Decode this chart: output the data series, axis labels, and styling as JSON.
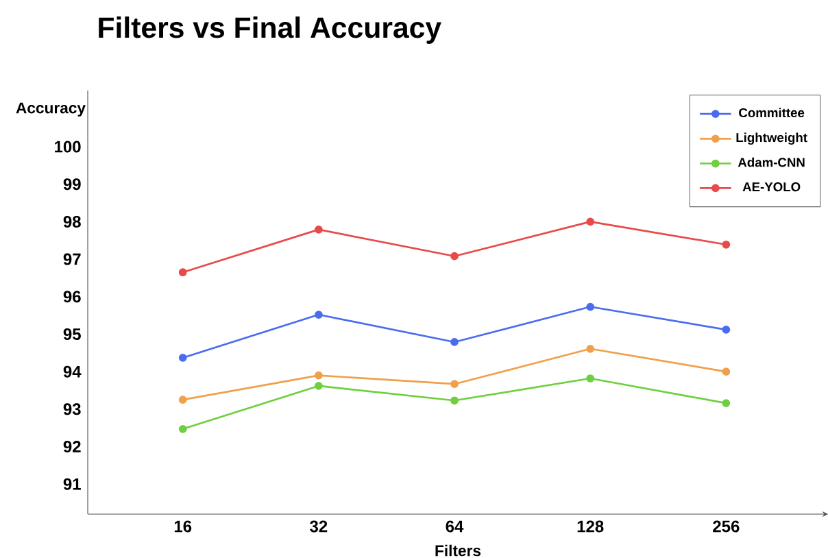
{
  "chart_data": {
    "type": "line",
    "title": "Filters vs Final Accuracy",
    "xlabel": "Filters",
    "ylabel": "Accuracy",
    "categories": [
      "16",
      "32",
      "64",
      "128",
      "256"
    ],
    "series": [
      {
        "name": "Committee",
        "color": "#4a6cf0",
        "values": [
          94.37,
          95.52,
          94.79,
          95.73,
          95.12
        ]
      },
      {
        "name": "Lightweight",
        "color": "#f0a04b",
        "values": [
          93.25,
          93.9,
          93.67,
          94.61,
          94.0
        ]
      },
      {
        "name": "Adam-CNN",
        "color": "#6fcf3f",
        "values": [
          92.47,
          93.62,
          93.23,
          93.82,
          93.16
        ]
      },
      {
        "name": "AE-YOLO",
        "color": "#e84a4a",
        "values": [
          96.65,
          97.79,
          97.08,
          98.0,
          97.39
        ]
      }
    ],
    "ylim": [
      90.2,
      101.5
    ],
    "yticks": [
      91,
      92,
      93,
      94,
      95,
      96,
      97,
      98,
      99,
      100
    ],
    "legend": "top right",
    "marker": "circle",
    "line_style": "solid"
  }
}
